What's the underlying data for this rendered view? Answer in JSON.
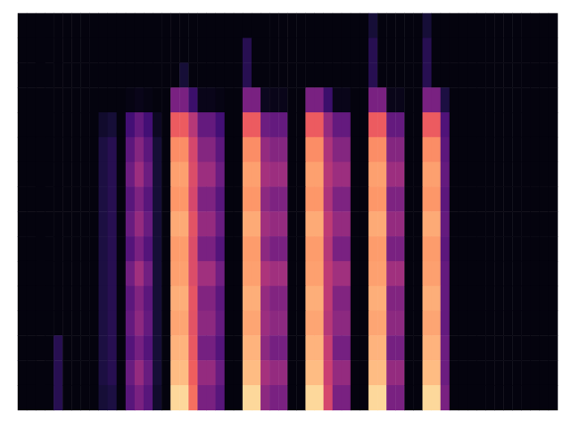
{
  "chart_data": {
    "type": "heatmap",
    "color": "magma",
    "tick_labels": false,
    "grid": false,
    "zlim": [
      0,
      100
    ],
    "values": [
      [
        2,
        2,
        2,
        2,
        2,
        2,
        2,
        2,
        2,
        2,
        2,
        2,
        2,
        2,
        2,
        2,
        2,
        2,
        2,
        2,
        2,
        2,
        2,
        2,
        2,
        2,
        2,
        2,
        2,
        2,
        2,
        2,
        2,
        2,
        2,
        2,
        2,
        2,
        2,
        10,
        2,
        2,
        2,
        2,
        2,
        10,
        2,
        2,
        2,
        2,
        2,
        2,
        2,
        2,
        2,
        2,
        2,
        2,
        2,
        2
      ],
      [
        2,
        2,
        2,
        2,
        2,
        2,
        2,
        2,
        2,
        2,
        2,
        2,
        2,
        2,
        2,
        2,
        2,
        2,
        2,
        2,
        2,
        2,
        2,
        2,
        2,
        15,
        2,
        2,
        2,
        2,
        2,
        2,
        2,
        2,
        2,
        2,
        2,
        2,
        2,
        15,
        2,
        2,
        2,
        2,
        2,
        15,
        2,
        2,
        2,
        2,
        2,
        2,
        2,
        2,
        2,
        2,
        2,
        2,
        2,
        2
      ],
      [
        2,
        2,
        2,
        2,
        2,
        2,
        2,
        2,
        2,
        2,
        2,
        2,
        2,
        2,
        2,
        2,
        2,
        2,
        10,
        2,
        2,
        2,
        2,
        2,
        2,
        15,
        2,
        2,
        2,
        2,
        2,
        2,
        2,
        2,
        2,
        2,
        2,
        2,
        2,
        15,
        2,
        2,
        2,
        2,
        2,
        15,
        2,
        2,
        2,
        2,
        2,
        2,
        2,
        2,
        2,
        2,
        2,
        2,
        2,
        2
      ],
      [
        2,
        2,
        2,
        2,
        2,
        2,
        2,
        2,
        2,
        2,
        2,
        2,
        3,
        4,
        3,
        2,
        2,
        35,
        35,
        20,
        4,
        4,
        3,
        2,
        2,
        35,
        35,
        5,
        4,
        4,
        2,
        2,
        35,
        35,
        20,
        4,
        4,
        2,
        2,
        35,
        35,
        4,
        4,
        2,
        2,
        35,
        35,
        12,
        2,
        2,
        2,
        2,
        2,
        2,
        2,
        2,
        2,
        2,
        2,
        2
      ],
      [
        2,
        2,
        2,
        2,
        2,
        2,
        2,
        2,
        2,
        8,
        10,
        2,
        22,
        30,
        22,
        6,
        2,
        65,
        65,
        50,
        30,
        30,
        22,
        2,
        2,
        65,
        65,
        32,
        30,
        30,
        2,
        2,
        65,
        65,
        42,
        30,
        30,
        2,
        2,
        65,
        65,
        30,
        30,
        2,
        2,
        65,
        65,
        25,
        2,
        2,
        2,
        2,
        2,
        2,
        2,
        2,
        2,
        2,
        2,
        2
      ],
      [
        2,
        2,
        2,
        2,
        2,
        2,
        2,
        2,
        2,
        12,
        15,
        2,
        28,
        38,
        28,
        10,
        2,
        76,
        76,
        58,
        38,
        38,
        28,
        2,
        2,
        76,
        76,
        42,
        38,
        38,
        2,
        2,
        76,
        76,
        48,
        38,
        38,
        2,
        2,
        76,
        76,
        38,
        38,
        2,
        2,
        76,
        76,
        28,
        2,
        2,
        2,
        2,
        2,
        2,
        2,
        2,
        2,
        2,
        2,
        2
      ],
      [
        2,
        2,
        2,
        2,
        2,
        2,
        2,
        2,
        2,
        12,
        15,
        2,
        32,
        44,
        32,
        10,
        2,
        80,
        80,
        60,
        44,
        44,
        32,
        2,
        2,
        80,
        80,
        46,
        44,
        44,
        2,
        2,
        80,
        80,
        50,
        44,
        44,
        2,
        2,
        80,
        80,
        44,
        44,
        2,
        2,
        80,
        80,
        30,
        2,
        2,
        2,
        2,
        2,
        2,
        2,
        2,
        2,
        2,
        2,
        2
      ],
      [
        2,
        2,
        2,
        2,
        2,
        2,
        2,
        2,
        2,
        12,
        15,
        2,
        27,
        36,
        27,
        10,
        2,
        78,
        78,
        58,
        36,
        36,
        27,
        2,
        2,
        78,
        78,
        40,
        36,
        36,
        2,
        2,
        78,
        78,
        48,
        36,
        36,
        2,
        2,
        78,
        78,
        36,
        36,
        2,
        2,
        78,
        78,
        28,
        2,
        2,
        2,
        2,
        2,
        2,
        2,
        2,
        2,
        2,
        2,
        2
      ],
      [
        2,
        2,
        2,
        2,
        2,
        2,
        2,
        2,
        2,
        12,
        15,
        2,
        31,
        42,
        31,
        10,
        2,
        82,
        82,
        62,
        42,
        42,
        31,
        2,
        2,
        82,
        82,
        45,
        42,
        42,
        2,
        2,
        82,
        82,
        52,
        42,
        42,
        2,
        2,
        82,
        82,
        42,
        42,
        2,
        2,
        82,
        82,
        30,
        2,
        2,
        2,
        2,
        2,
        2,
        2,
        2,
        2,
        2,
        2,
        2
      ],
      [
        2,
        2,
        2,
        2,
        2,
        2,
        2,
        2,
        2,
        12,
        15,
        2,
        26,
        35,
        26,
        10,
        2,
        79,
        79,
        60,
        35,
        35,
        26,
        2,
        2,
        79,
        79,
        40,
        35,
        35,
        2,
        2,
        79,
        79,
        50,
        35,
        35,
        2,
        2,
        79,
        79,
        35,
        35,
        2,
        2,
        79,
        79,
        28,
        2,
        2,
        2,
        2,
        2,
        2,
        2,
        2,
        2,
        2,
        2,
        2
      ],
      [
        2,
        2,
        2,
        2,
        2,
        2,
        2,
        2,
        2,
        12,
        15,
        2,
        33,
        45,
        33,
        10,
        2,
        80,
        80,
        60,
        45,
        45,
        33,
        2,
        2,
        80,
        80,
        48,
        45,
        45,
        2,
        2,
        80,
        80,
        52,
        45,
        45,
        2,
        2,
        80,
        80,
        45,
        45,
        2,
        2,
        80,
        80,
        30,
        2,
        2,
        2,
        2,
        2,
        2,
        2,
        2,
        2,
        2,
        2,
        2
      ],
      [
        2,
        2,
        2,
        2,
        2,
        2,
        2,
        2,
        2,
        12,
        15,
        2,
        28,
        37,
        28,
        10,
        2,
        83,
        83,
        63,
        37,
        37,
        28,
        2,
        2,
        83,
        83,
        42,
        37,
        37,
        2,
        2,
        83,
        83,
        52,
        37,
        37,
        2,
        2,
        83,
        83,
        37,
        37,
        2,
        2,
        83,
        83,
        30,
        2,
        2,
        2,
        2,
        2,
        2,
        2,
        2,
        2,
        2,
        2,
        2
      ],
      [
        2,
        2,
        2,
        2,
        2,
        2,
        2,
        2,
        2,
        12,
        15,
        2,
        30,
        40,
        30,
        10,
        2,
        81,
        81,
        62,
        40,
        40,
        30,
        2,
        2,
        81,
        81,
        44,
        40,
        40,
        2,
        2,
        81,
        81,
        50,
        40,
        40,
        2,
        2,
        81,
        81,
        40,
        40,
        2,
        2,
        81,
        81,
        30,
        2,
        2,
        2,
        2,
        2,
        2,
        2,
        2,
        2,
        2,
        2,
        2
      ],
      [
        2,
        2,
        2,
        2,
        15,
        2,
        2,
        2,
        2,
        12,
        15,
        2,
        26,
        34,
        26,
        10,
        2,
        84,
        84,
        64,
        34,
        34,
        26,
        2,
        2,
        84,
        84,
        40,
        34,
        34,
        2,
        2,
        84,
        84,
        54,
        34,
        34,
        2,
        2,
        84,
        84,
        34,
        34,
        2,
        2,
        84,
        84,
        32,
        2,
        2,
        2,
        2,
        2,
        2,
        2,
        2,
        2,
        2,
        2,
        2
      ],
      [
        2,
        2,
        2,
        2,
        15,
        2,
        2,
        2,
        2,
        12,
        15,
        2,
        31,
        42,
        31,
        10,
        2,
        86,
        86,
        66,
        42,
        42,
        31,
        2,
        2,
        86,
        86,
        46,
        42,
        42,
        2,
        2,
        86,
        86,
        55,
        42,
        42,
        2,
        2,
        86,
        86,
        42,
        42,
        2,
        2,
        86,
        86,
        32,
        2,
        2,
        2,
        2,
        2,
        2,
        2,
        2,
        2,
        2,
        2,
        2
      ],
      [
        2,
        2,
        2,
        2,
        15,
        2,
        2,
        2,
        2,
        10,
        12,
        2,
        27,
        35,
        27,
        8,
        2,
        92,
        92,
        70,
        35,
        35,
        27,
        2,
        2,
        92,
        92,
        40,
        35,
        35,
        2,
        2,
        92,
        92,
        58,
        35,
        35,
        2,
        2,
        92,
        92,
        35,
        35,
        2,
        2,
        92,
        92,
        35,
        2,
        2,
        2,
        2,
        2,
        2,
        2,
        2,
        2,
        2,
        2,
        2
      ]
    ]
  }
}
